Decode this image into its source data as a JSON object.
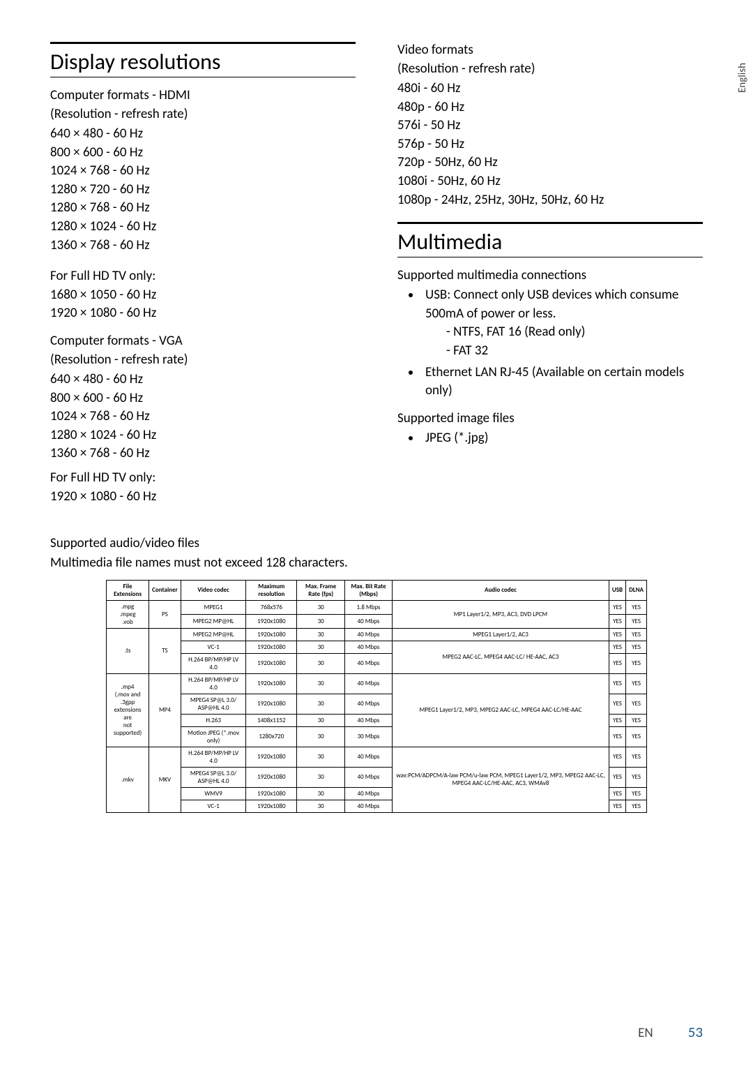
{
  "side_tab": "English",
  "left": {
    "title": "Display resolutions",
    "hdmi": {
      "heading": "Computer formats - HDMI",
      "sub": "(Resolution - refresh rate)",
      "items": [
        "640 × 480 - 60 Hz",
        "800 × 600 - 60 Hz",
        "1024 × 768 - 60 Hz",
        "1280 × 720 - 60 Hz",
        "1280 × 768 - 60 Hz",
        "1280 × 1024 - 60 Hz",
        "1360 × 768 - 60 Hz"
      ],
      "note": "For Full HD TV only:",
      "extra": [
        "1680 × 1050 - 60 Hz",
        "1920 × 1080 - 60 Hz"
      ]
    },
    "vga": {
      "heading": "Computer formats - VGA",
      "sub": "(Resolution - refresh rate)",
      "items": [
        "640 × 480 - 60 Hz",
        "800 × 600 - 60 Hz",
        "1024 × 768 - 60 Hz",
        "1280 × 1024 - 60 Hz",
        "1360 × 768 - 60 Hz"
      ],
      "note": "For Full HD TV only:",
      "extra": [
        "1920 × 1080 - 60 Hz"
      ]
    }
  },
  "right": {
    "video": {
      "heading": "Video formats",
      "sub": "(Resolution - refresh rate)",
      "items": [
        "480i - 60 Hz",
        "480p - 60 Hz",
        "576i - 50 Hz",
        "576p - 50 Hz",
        "720p - 50Hz, 60 Hz",
        "1080i - 50Hz, 60 Hz",
        "1080p - 24Hz, 25Hz, 30Hz, 50Hz, 60 Hz"
      ]
    },
    "multimedia": {
      "title": "Multimedia",
      "conn_heading": "Supported multimedia connections",
      "usb_main": "USB: Connect only USB devices which consume 500mA of power or less.",
      "usb_sub1": "- NTFS, FAT 16 (Read only)",
      "usb_sub2": "- FAT 32",
      "eth": "Ethernet LAN RJ-45 (Available on certain models only)",
      "img_heading": "Supported image files",
      "img_item": "JPEG (*.jpg)"
    }
  },
  "av": {
    "heading": "Supported audio/video files",
    "sub": "Multimedia file names must not exceed 128 characters.",
    "columns": [
      "File Extensions",
      "Container",
      "Video codec",
      "Maximum resolution",
      "Max. Frame Rate (fps)",
      "Max. Bit Rate (Mbps)",
      "Audio codec",
      "USB",
      "DLNA"
    ]
  },
  "table_rows": [
    {
      "ext": ".mpg\n.mpeg\n.vob",
      "ext_rs": 2,
      "cont": "PS",
      "cont_rs": 2,
      "codec": "MPEG1",
      "res": "768x576",
      "fps": "30",
      "bit": "1.8 Mbps",
      "audio": "MP1 Layer1/2, MP3, AC3, DVD LPCM",
      "audio_rs": 2,
      "usb": "YES",
      "dlna": "YES"
    },
    {
      "codec": "MPEG2 MP@HL",
      "res": "1920x1080",
      "fps": "30",
      "bit": "40 Mbps",
      "usb": "YES",
      "dlna": "YES"
    },
    {
      "ext": ".ts",
      "ext_rs": 3,
      "cont": "TS",
      "cont_rs": 3,
      "codec": "MPEG2 MP@HL",
      "res": "1920x1080",
      "fps": "30",
      "bit": "40 Mbps",
      "audio": "MPEG1 Layer1/2, AC3",
      "audio_rs": 1,
      "usb": "YES",
      "dlna": "YES"
    },
    {
      "codec": "VC-1",
      "res": "1920x1080",
      "fps": "30",
      "bit": "40 Mbps",
      "audio": "MPEG2 AAC-LC, MPEG4 AAC-LC/ HE-AAC, AC3",
      "audio_rs": 2,
      "usb": "YES",
      "dlna": "YES"
    },
    {
      "codec": "H.264 BP/MP/HP LV 4.0",
      "res": "1920x1080",
      "fps": "30",
      "bit": "40 Mbps",
      "usb": "YES",
      "dlna": "YES"
    },
    {
      "ext": ".mp4\n(.mov  and .3gpp\nextensions are\nnot supported)",
      "ext_rs": 4,
      "cont": "MP4",
      "cont_rs": 4,
      "codec": "H.264 BP/MP/HP LV 4.0",
      "res": "1920x1080",
      "fps": "30",
      "bit": "40 Mbps",
      "audio": "MPEG1 Layer1/2, MP3, MPEG2 AAC-LC, MPEG4 AAC-LC/HE-AAC",
      "audio_rs": 4,
      "usb": "YES",
      "dlna": "YES"
    },
    {
      "codec": "MPEG4 SP@L 3.0/ ASP@HL 4.0",
      "res": "1920x1080",
      "fps": "30",
      "bit": "40 Mbps",
      "usb": "YES",
      "dlna": "YES"
    },
    {
      "codec": "H.263",
      "res": "1408x1152",
      "fps": "30",
      "bit": "40 Mbps",
      "usb": "YES",
      "dlna": "YES"
    },
    {
      "codec": "Motion JPEG (*.mov only)",
      "res": "1280x720",
      "fps": "30",
      "bit": "30 Mbps",
      "usb": "YES",
      "dlna": "YES"
    },
    {
      "ext": ".mkv",
      "ext_rs": 4,
      "cont": "MKV",
      "cont_rs": 4,
      "codec": "H.264 BP/MP/HP LV 4.0",
      "res": "1920x1080",
      "fps": "30",
      "bit": "40 Mbps",
      "audio": "wav:PCM/ADPCM/A-law PCM/u-law PCM, MPEG1 Layer1/2, MP3, MPEG2 AAC-LC, MPEG4 AAC-LC/HE-AAC, AC3, WMAv8",
      "audio_rs": 4,
      "usb": "YES",
      "dlna": "YES"
    },
    {
      "codec": "MPEG4 SP@L 3.0/ ASP@HL 4.0",
      "res": "1920x1080",
      "fps": "30",
      "bit": "40 Mbps",
      "usb": "YES",
      "dlna": "YES"
    },
    {
      "codec": "WMV9",
      "res": "1920x1080",
      "fps": "30",
      "bit": "40 Mbps",
      "usb": "YES",
      "dlna": "YES"
    },
    {
      "codec": "VC-1",
      "res": "1920x1080",
      "fps": "30",
      "bit": "40 Mbps",
      "usb": "YES",
      "dlna": "YES"
    }
  ],
  "footer": {
    "lang": "EN",
    "page": "53"
  }
}
